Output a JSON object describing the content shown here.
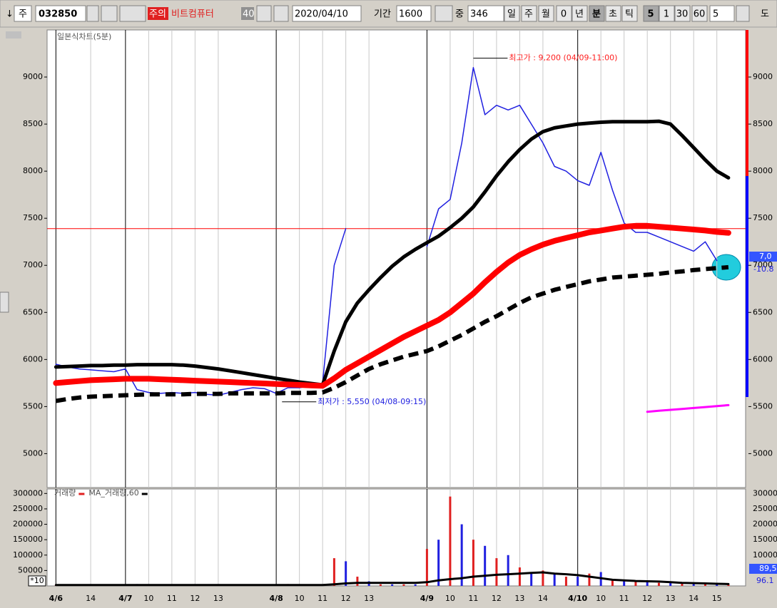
{
  "toolbar": {
    "arrow": "↓",
    "market": "주",
    "code": "032850",
    "warning": "주의",
    "name": "비트컴퓨터",
    "badge": "40",
    "date": "2020/04/10",
    "period_label": "기간",
    "period": "1600",
    "count_label": "중",
    "count": "346",
    "intervals": [
      "일",
      "주",
      "월",
      "0",
      "년",
      "분",
      "초",
      "틱",
      "5",
      "1",
      "30",
      "60"
    ],
    "interval_input": "5",
    "more": "도"
  },
  "chart_data": [
    {
      "type": "line",
      "subtitle": "일본식차트(5분)",
      "x": [
        3.5,
        4,
        4.5,
        5,
        5.5,
        6,
        6.5,
        7,
        7.5,
        8,
        8.5,
        9,
        9.5,
        10,
        10.5,
        11,
        11.5,
        12,
        12.5,
        13,
        13.5,
        14,
        14.5,
        15,
        15.5,
        16,
        16.5,
        17,
        17.5,
        18,
        18.5,
        19,
        19.5,
        20,
        20.5,
        21,
        21.5,
        22,
        22.5,
        23,
        23.5,
        24,
        24.5,
        25,
        25.5,
        26,
        26.5,
        27,
        27.5,
        28,
        28.5,
        29,
        29.5,
        30,
        30.5,
        31,
        31.5,
        32,
        32.5
      ],
      "xlim": [
        3.12,
        33.24
      ],
      "xticks": [
        {
          "value": 3.5,
          "label": "4/6"
        },
        {
          "value": 5,
          "label": "14"
        },
        {
          "value": 6.5,
          "label": "4/7"
        },
        {
          "value": 7.5,
          "label": "10"
        },
        {
          "value": 8.5,
          "label": "11"
        },
        {
          "value": 9.5,
          "label": "12"
        },
        {
          "value": 10.5,
          "label": "13"
        },
        {
          "value": 13,
          "label": "4/8"
        },
        {
          "value": 14,
          "label": "10"
        },
        {
          "value": 15,
          "label": "11"
        },
        {
          "value": 16,
          "label": "12"
        },
        {
          "value": 17,
          "label": "13"
        },
        {
          "value": 19.5,
          "label": "4/9"
        },
        {
          "value": 20.5,
          "label": "10"
        },
        {
          "value": 21.5,
          "label": "11"
        },
        {
          "value": 22.5,
          "label": "12"
        },
        {
          "value": 23.5,
          "label": "13"
        },
        {
          "value": 24.5,
          "label": "14"
        },
        {
          "value": 26,
          "label": "4/10"
        },
        {
          "value": 27,
          "label": "10"
        },
        {
          "value": 28,
          "label": "11"
        },
        {
          "value": 29,
          "label": "12"
        },
        {
          "value": 30,
          "label": "13"
        },
        {
          "value": 31,
          "label": "14"
        },
        {
          "value": 32,
          "label": "15"
        }
      ],
      "ylim": [
        4640,
        9500
      ],
      "yticks": [
        5000,
        5500,
        6000,
        6500,
        7000,
        7500,
        8000,
        8500,
        9000
      ],
      "series": [
        {
          "color": "#2020e0",
          "values": [
            5950,
            5920,
            5900,
            5890,
            5880,
            5870,
            5900,
            5680,
            5650,
            5640,
            5650,
            5640,
            5650,
            5630,
            5620,
            5650,
            5680,
            5700,
            5690,
            5640,
            5700,
            5700,
            5720,
            5750,
            7000,
            7390,
            null,
            null,
            null,
            null,
            null,
            null,
            7200,
            7600,
            7700,
            8300,
            9100,
            8600,
            8700,
            8650,
            8700,
            8500,
            8300,
            8050,
            8000,
            7900,
            7850,
            8200,
            7800,
            7450,
            7350,
            7350,
            7300,
            7250,
            7200,
            7150,
            7250,
            7050,
            null
          ]
        },
        {
          "color": "#000000",
          "values": [
            5920,
            5925,
            5930,
            5935,
            5935,
            5940,
            5940,
            5945,
            5945,
            5945,
            5945,
            5940,
            5930,
            5915,
            5900,
            5880,
            5860,
            5840,
            5820,
            5800,
            5780,
            5760,
            5745,
            5730,
            6090,
            6400,
            6600,
            6740,
            6870,
            6990,
            7090,
            7170,
            7240,
            7310,
            7400,
            7500,
            7620,
            7780,
            7950,
            8100,
            8230,
            8340,
            8420,
            8460,
            8480,
            8500,
            8510,
            8520,
            8525,
            8525,
            8525,
            8525,
            8530,
            8500,
            8380,
            8250,
            8120,
            8000,
            7930
          ]
        },
        {
          "color": "#ff0000",
          "values": [
            5750,
            5760,
            5770,
            5780,
            5785,
            5790,
            5795,
            5795,
            5795,
            5790,
            5785,
            5780,
            5775,
            5770,
            5765,
            5760,
            5755,
            5750,
            5745,
            5740,
            5735,
            5730,
            5725,
            5720,
            5800,
            5890,
            5960,
            6030,
            6100,
            6170,
            6240,
            6300,
            6360,
            6420,
            6500,
            6600,
            6700,
            6820,
            6930,
            7030,
            7110,
            7170,
            7220,
            7260,
            7290,
            7320,
            7350,
            7370,
            7390,
            7410,
            7420,
            7420,
            7410,
            7400,
            7390,
            7380,
            7370,
            7355,
            7345
          ]
        },
        {
          "color": "#000000",
          "line_style": "dashed",
          "values": [
            5560,
            5580,
            5595,
            5605,
            5610,
            5615,
            5620,
            5625,
            5630,
            5630,
            5630,
            5630,
            5635,
            5635,
            5635,
            5640,
            5640,
            5640,
            5640,
            5640,
            5645,
            5645,
            5645,
            5650,
            5700,
            5760,
            5830,
            5900,
            5950,
            5990,
            6030,
            6060,
            6090,
            6140,
            6200,
            6260,
            6330,
            6400,
            6460,
            6530,
            6600,
            6660,
            6700,
            6740,
            6770,
            6800,
            6830,
            6850,
            6870,
            6880,
            6890,
            6900,
            6910,
            6925,
            6935,
            6950,
            6960,
            6970,
            6980
          ]
        },
        {
          "color": "#ff00ff",
          "values": [
            null,
            null,
            null,
            null,
            null,
            null,
            null,
            null,
            null,
            null,
            null,
            null,
            null,
            null,
            null,
            null,
            null,
            null,
            null,
            null,
            null,
            null,
            null,
            null,
            null,
            null,
            null,
            null,
            null,
            null,
            null,
            null,
            null,
            null,
            null,
            null,
            null,
            null,
            null,
            null,
            null,
            null,
            null,
            null,
            null,
            null,
            null,
            null,
            null,
            null,
            null,
            5445,
            5455,
            5465,
            5475,
            5485,
            5495,
            5505,
            5515
          ]
        }
      ],
      "reference_line": {
        "value": 7390,
        "color": "#ff0000"
      },
      "annotations": [
        {
          "text": "최고가 : 9,200 (04/09-11:00)",
          "x": 21.5,
          "y": 9200,
          "color": "#ff2020"
        },
        {
          "text": "최저가 : 5,550 (04/08-09:15)",
          "x": 13.25,
          "y": 5550,
          "color": "#2020e0"
        }
      ],
      "last_labels": [
        "7,0",
        "-10.8"
      ]
    },
    {
      "type": "bar",
      "x": [
        3.5,
        4,
        4.5,
        5,
        5.5,
        6,
        6.5,
        7,
        7.5,
        8,
        8.5,
        9,
        9.5,
        10,
        10.5,
        11,
        11.5,
        12,
        12.5,
        13,
        13.5,
        14,
        14.5,
        15,
        15.5,
        16,
        16.5,
        17,
        17.5,
        18,
        18.5,
        19,
        19.5,
        20,
        20.5,
        21,
        21.5,
        22,
        22.5,
        23,
        23.5,
        24,
        24.5,
        25,
        25.5,
        26,
        26.5,
        27,
        27.5,
        28,
        28.5,
        29,
        29.5,
        30,
        30.5,
        31,
        31.5,
        32,
        32.5
      ],
      "xlim": [
        3.12,
        33.24
      ],
      "ylim": [
        0,
        310000
      ],
      "yticks": [
        50000,
        100000,
        150000,
        200000,
        250000,
        300000
      ],
      "scale_label": "*10",
      "series": [
        {
          "name": "거래량",
          "color": "#e02020",
          "values": [
            3000,
            2000,
            4000,
            2000,
            3000,
            2000,
            5000,
            6000,
            3000,
            2000,
            3000,
            2000,
            4000,
            3000,
            2000,
            3000,
            5000,
            2000,
            3000,
            4000,
            6000,
            3000,
            2000,
            5000,
            90000,
            80000,
            30000,
            15000,
            5000,
            5000,
            5000,
            5000,
            120000,
            150000,
            290000,
            200000,
            150000,
            130000,
            90000,
            100000,
            60000,
            40000,
            50000,
            40000,
            30000,
            30000,
            40000,
            45000,
            20000,
            20000,
            15000,
            15000,
            10000,
            10000,
            12000,
            10000,
            8000,
            10000,
            5000
          ]
        },
        {
          "name": "MA_거래량,60",
          "color": "#000000",
          "type": "line",
          "values": [
            3000,
            3000,
            3000,
            3000,
            3000,
            3000,
            3000,
            3000,
            3000,
            3000,
            3000,
            3000,
            3000,
            3000,
            3000,
            3000,
            3000,
            3000,
            3000,
            3000,
            3000,
            3000,
            3000,
            3000,
            5000,
            8000,
            10000,
            10000,
            10000,
            10000,
            10000,
            10000,
            12000,
            18000,
            22000,
            25000,
            30000,
            33000,
            36000,
            38000,
            40000,
            42000,
            44000,
            40000,
            38000,
            35000,
            30000,
            25000,
            20000,
            18000,
            16000,
            15000,
            14000,
            12000,
            10000,
            9000,
            8000,
            7000,
            6000
          ]
        }
      ],
      "last_labels": [
        "89,5",
        "96.1"
      ]
    }
  ]
}
